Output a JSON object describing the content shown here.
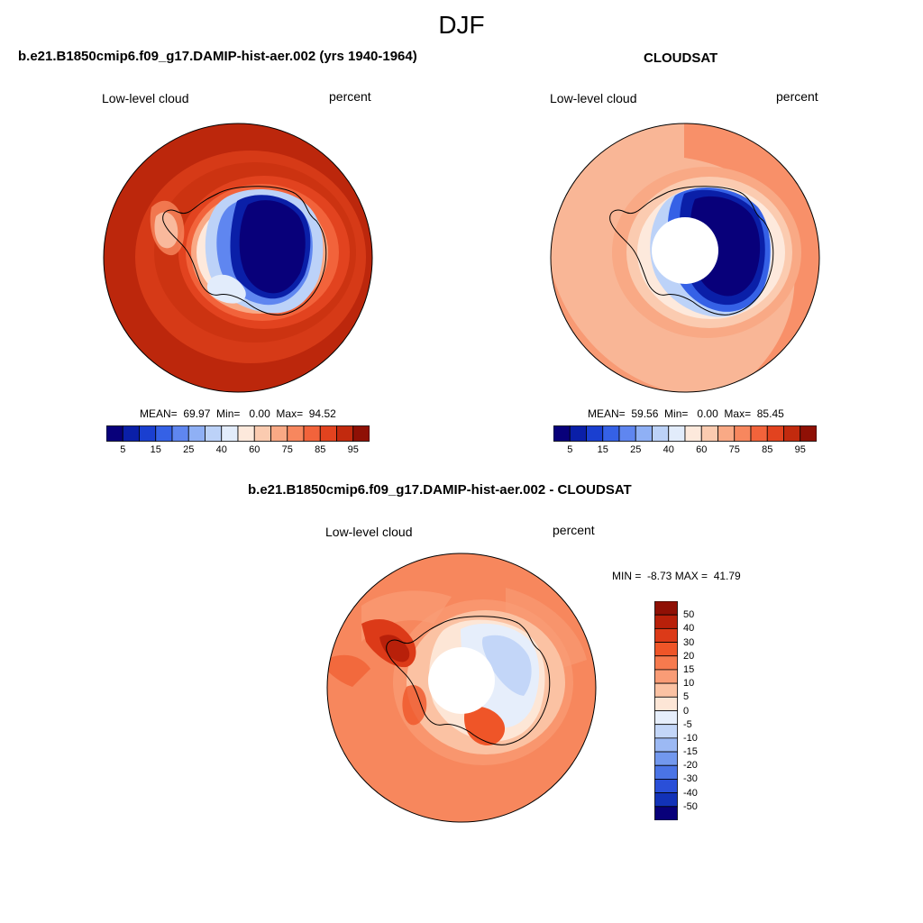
{
  "season_title": "DJF",
  "panels": [
    {
      "title": "b.e21.B1850cmip6.f09_g17.DAMIP-hist-aer.002 (yrs 1940-1964)",
      "variable": "Low-level cloud",
      "units": "percent",
      "stats": "MEAN=  69.97  Min=   0.00  Max=  94.52",
      "colorbar_labels": [
        "5",
        "15",
        "25",
        "40",
        "60",
        "75",
        "85",
        "95"
      ],
      "colorbar_colors": [
        "#08007a",
        "#0a1fa8",
        "#1a3fd0",
        "#3561e6",
        "#5f86f0",
        "#8fb0f5",
        "#bcd2f8",
        "#e2ecfb",
        "#fde9dc",
        "#fbcbb0",
        "#f9a985",
        "#f7875e",
        "#f2633b",
        "#e2431f",
        "#c22a0e",
        "#8f1005"
      ]
    },
    {
      "title": "CLOUDSAT",
      "variable": "Low-level cloud",
      "units": "percent",
      "stats": "MEAN=  59.56  Min=   0.00  Max=  85.45",
      "colorbar_labels": [
        "5",
        "15",
        "25",
        "40",
        "60",
        "75",
        "85",
        "95"
      ],
      "colorbar_colors": [
        "#08007a",
        "#0a1fa8",
        "#1a3fd0",
        "#3561e6",
        "#5f86f0",
        "#8fb0f5",
        "#bcd2f8",
        "#e2ecfb",
        "#fde9dc",
        "#fbcbb0",
        "#f9a985",
        "#f7875e",
        "#f2633b",
        "#e2431f",
        "#c22a0e",
        "#8f1005"
      ]
    },
    {
      "title": "b.e21.B1850cmip6.f09_g17.DAMIP-hist-aer.002 - CLOUDSAT",
      "variable": "Low-level cloud",
      "units": "percent",
      "stats": "MIN =  -8.73 MAX =  41.79",
      "colorbar_labels": [
        "50",
        "40",
        "30",
        "20",
        "15",
        "10",
        "5",
        "0",
        "-5",
        "-10",
        "-15",
        "-20",
        "-30",
        "-40",
        "-50"
      ],
      "colorbar_colors": [
        "#8f1005",
        "#b8200a",
        "#dc3a18",
        "#ef5528",
        "#f67a4e",
        "#f99c76",
        "#fbc2a3",
        "#fde6d6",
        "#e6eefb",
        "#c3d6f8",
        "#9cb9f4",
        "#7298ee",
        "#4a74e6",
        "#2a4fd8",
        "#1232b8",
        "#08007a"
      ]
    }
  ]
}
